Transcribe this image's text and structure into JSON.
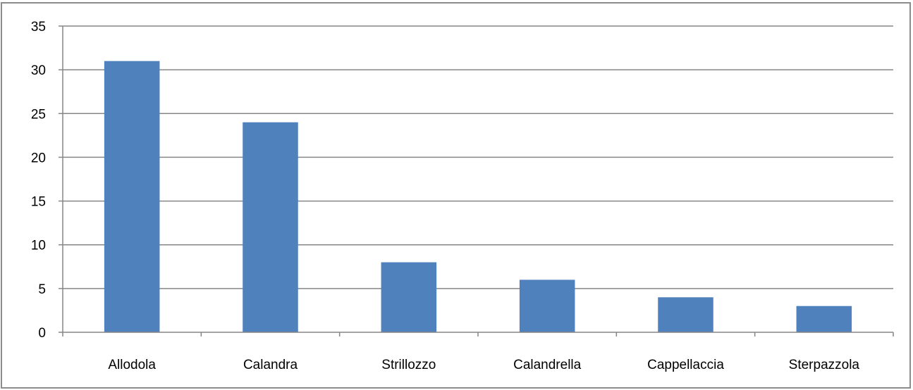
{
  "chart_data": {
    "type": "bar",
    "categories": [
      "Allodola",
      "Calandra",
      "Strillozzo",
      "Calandrella",
      "Cappellaccia",
      "Sterpazzola"
    ],
    "values": [
      31,
      24,
      8,
      6,
      4,
      3
    ],
    "yticks": [
      "0",
      "5",
      "10",
      "15",
      "20",
      "25",
      "30",
      "35"
    ],
    "title": "",
    "xlabel": "",
    "ylabel": "",
    "ylim": [
      0,
      35
    ],
    "grid": true,
    "legend": "none",
    "bar_color": "#4F81BD",
    "grid_color": "#868686"
  }
}
